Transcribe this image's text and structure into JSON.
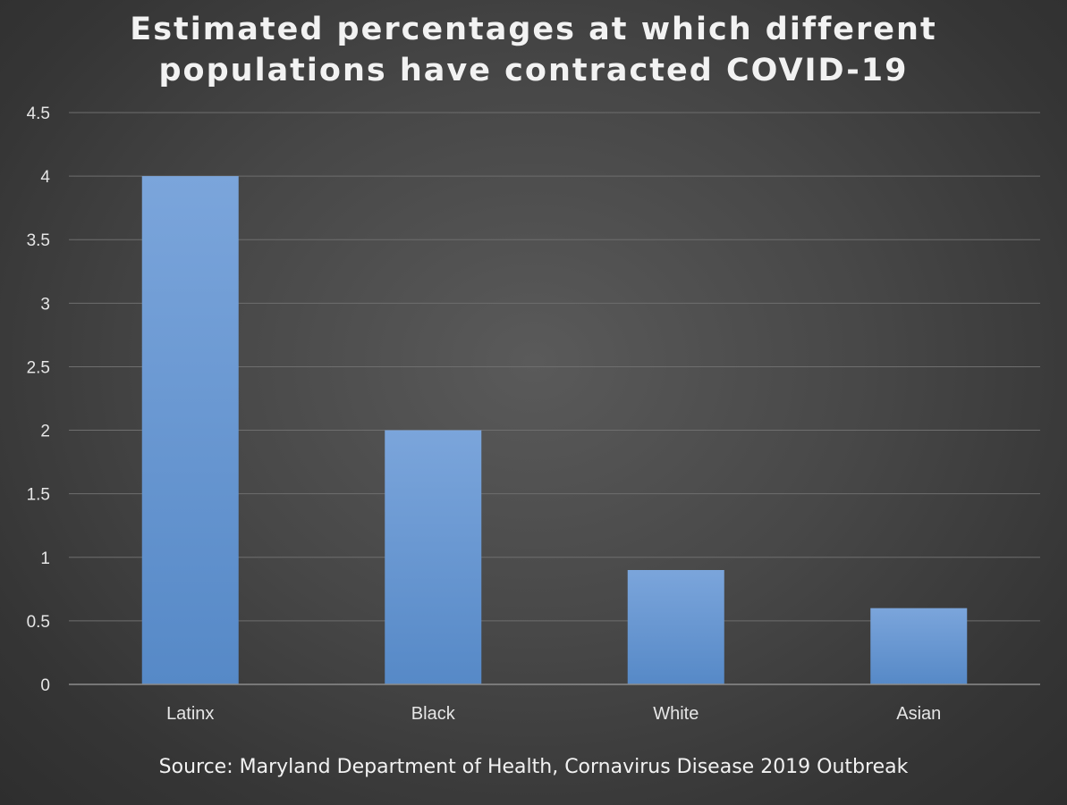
{
  "chart_data": {
    "type": "bar",
    "title_lines": [
      "Estimated percentages at which different",
      "populations have contracted COVID-19"
    ],
    "categories": [
      "Latinx",
      "Black",
      "White",
      "Asian"
    ],
    "values": [
      4,
      2,
      0.9,
      0.6
    ],
    "ylim": [
      0,
      4.5
    ],
    "yticks": [
      "0",
      "0.5",
      "1",
      "1.5",
      "2",
      "2.5",
      "3",
      "3.5",
      "4",
      "4.5"
    ],
    "grid": true,
    "xlabel": "",
    "ylabel": "",
    "source": "Source: Maryland Department of Health, Cornavirus Disease 2019 Outbreak"
  },
  "colors": {
    "bar_top": "#7ba5db",
    "bar_bottom": "#5689c7",
    "grid": "#6e6e6e",
    "axis": "#8c8c8c"
  }
}
